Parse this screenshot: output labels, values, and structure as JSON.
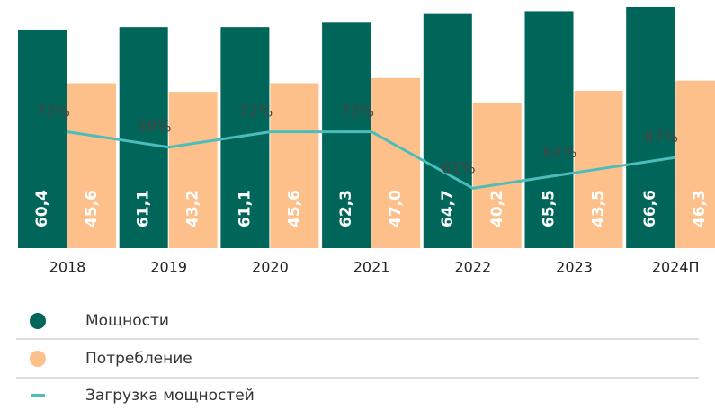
{
  "chart_data": {
    "type": "bar",
    "categories": [
      "2018",
      "2019",
      "2020",
      "2021",
      "2022",
      "2023",
      "2024П"
    ],
    "series": [
      {
        "name": "Мощности",
        "color": "#00665a",
        "values": [
          60.4,
          61.1,
          61.1,
          62.3,
          64.7,
          65.5,
          66.6
        ],
        "value_labels": [
          "60,4",
          "61,1",
          "61,1",
          "62,3",
          "64,7",
          "65,5",
          "66,6"
        ]
      },
      {
        "name": "Потребление",
        "color": "#fdc08a",
        "values": [
          45.6,
          43.2,
          45.6,
          47.0,
          40.2,
          43.5,
          46.3
        ],
        "value_labels": [
          "45,6",
          "43,2",
          "45,6",
          "47,0",
          "40,2",
          "43,5",
          "46,3"
        ]
      },
      {
        "name": "Загрузка мощностей",
        "type": "line",
        "axis": "y2",
        "color": "#4dbdbb",
        "values": [
          72,
          69,
          72,
          72,
          61,
          64,
          67
        ],
        "value_labels": [
          "72%",
          "69%",
          "72%",
          "72%",
          "61%",
          "64%",
          "67%"
        ]
      }
    ]
  }
}
